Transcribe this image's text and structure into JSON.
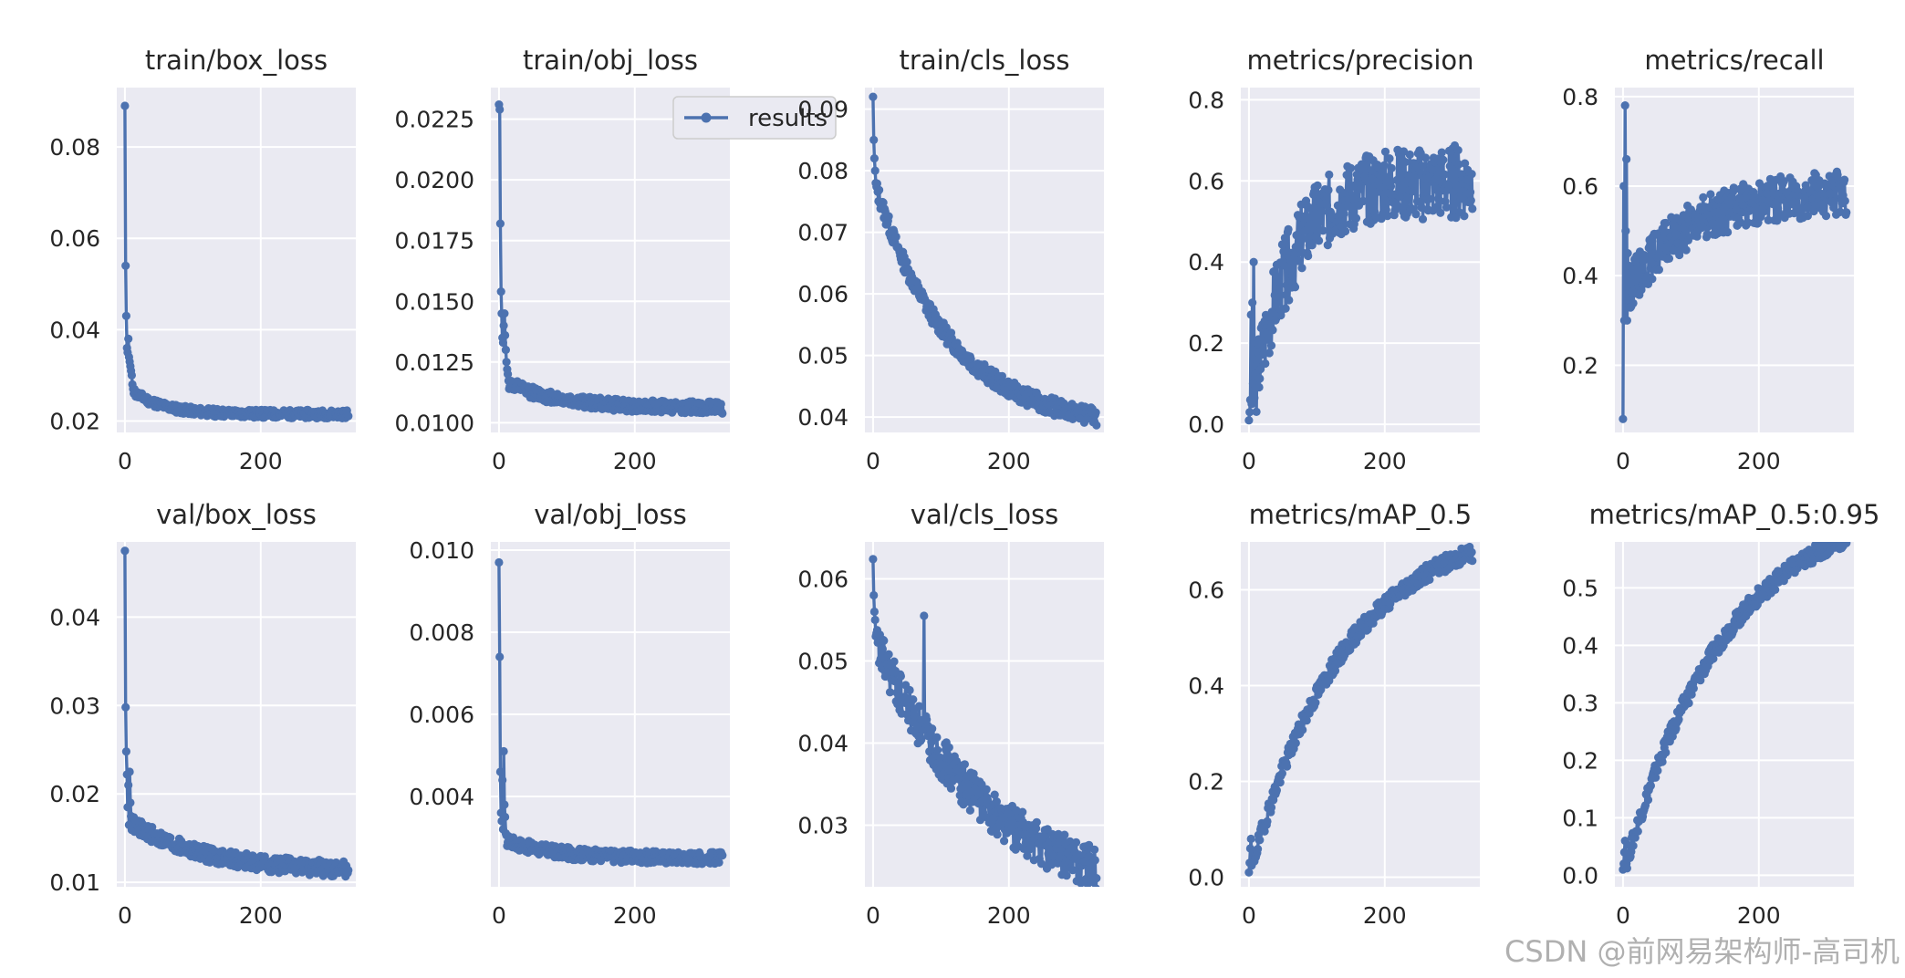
{
  "legend": {
    "label": "results"
  },
  "watermark": "CSDN @前网易架构师-高司机",
  "colors": {
    "line": "#4c72b0",
    "panel_bg": "#eaeaf2",
    "grid": "#ffffff",
    "text": "#262626"
  },
  "chart_data": [
    {
      "type": "line",
      "title": "train/box_loss",
      "xlim": [
        -12,
        340
      ],
      "ylim": [
        0.0175,
        0.093
      ],
      "xticks": [
        0,
        200
      ],
      "yticks": [
        0.02,
        0.04,
        0.06,
        0.08
      ],
      "ytick_labels": [
        "0.02",
        "0.04",
        "0.06",
        "0.08"
      ],
      "series": [
        {
          "name": "results",
          "curve": {
            "kind": "decay",
            "n": 330,
            "start": 0.089,
            "early": [
              0.089,
              0.054,
              0.043,
              0.036,
              0.035,
              0.038,
              0.034,
              0.033,
              0.032,
              0.031,
              0.03,
              0.028,
              0.027,
              0.026
            ],
            "a": 0.0065,
            "tau": 45,
            "floor": 0.0215,
            "noise": 0.0009,
            "spike": 0,
            "seed": 11
          }
        }
      ]
    },
    {
      "type": "line",
      "title": "train/obj_loss",
      "xlim": [
        -12,
        340
      ],
      "ylim": [
        0.0096,
        0.0238
      ],
      "xticks": [
        0,
        200
      ],
      "yticks": [
        0.01,
        0.0125,
        0.015,
        0.0175,
        0.02,
        0.0225
      ],
      "ytick_labels": [
        "0.0100",
        "0.0125",
        "0.0150",
        "0.0175",
        "0.0200",
        "0.0225"
      ],
      "series": [
        {
          "name": "results",
          "curve": {
            "kind": "decay",
            "n": 330,
            "start": 0.0231,
            "early": [
              0.0231,
              0.0229,
              0.0182,
              0.0154,
              0.0145,
              0.0135,
              0.0133,
              0.014,
              0.0145,
              0.0136,
              0.013,
              0.0125,
              0.0122,
              0.012
            ],
            "a": 0.0012,
            "tau": 80,
            "floor": 0.0106,
            "noise": 0.00025,
            "spike": 0,
            "seed": 12
          }
        }
      ]
    },
    {
      "type": "line",
      "title": "train/cls_loss",
      "xlim": [
        -12,
        340
      ],
      "ylim": [
        0.0375,
        0.0935
      ],
      "xticks": [
        0,
        200
      ],
      "yticks": [
        0.04,
        0.05,
        0.06,
        0.07,
        0.08,
        0.09
      ],
      "ytick_labels": [
        "0.04",
        "0.05",
        "0.06",
        "0.07",
        "0.08",
        "0.09"
      ],
      "series": [
        {
          "name": "results",
          "curve": {
            "kind": "decay",
            "n": 330,
            "start": 0.092,
            "early": [
              0.092,
              0.085,
              0.082,
              0.08,
              0.078
            ],
            "a": 0.041,
            "tau": 110,
            "floor": 0.038,
            "noise": 0.0014,
            "spike": 0,
            "seed": 13
          }
        }
      ]
    },
    {
      "type": "line",
      "title": "metrics/precision",
      "xlim": [
        -12,
        340
      ],
      "ylim": [
        -0.02,
        0.83
      ],
      "xticks": [
        0,
        200
      ],
      "yticks": [
        0.0,
        0.2,
        0.4,
        0.6,
        0.8
      ],
      "ytick_labels": [
        "0.0",
        "0.2",
        "0.4",
        "0.6",
        "0.8"
      ],
      "series": [
        {
          "name": "results",
          "curve": {
            "kind": "rise",
            "n": 330,
            "start": 0.01,
            "early": [
              0.01,
              0.03,
              0.06,
              0.27,
              0.05,
              0.3,
              0.1,
              0.4
            ],
            "a": 0.6,
            "tau": 55,
            "floor": 0.0,
            "noise": 0.09,
            "spike": 0.0,
            "seed": 14
          }
        }
      ]
    },
    {
      "type": "line",
      "title": "metrics/recall",
      "xlim": [
        -12,
        340
      ],
      "ylim": [
        0.05,
        0.82
      ],
      "xticks": [
        0,
        200
      ],
      "yticks": [
        0.2,
        0.4,
        0.6,
        0.8
      ],
      "ytick_labels": [
        "0.2",
        "0.4",
        "0.6",
        "0.8"
      ],
      "series": [
        {
          "name": "results",
          "curve": {
            "kind": "rise",
            "n": 330,
            "start": 0.08,
            "early": [
              0.08,
              0.6,
              0.3,
              0.78,
              0.5,
              0.66,
              0.3,
              0.45
            ],
            "a": 0.24,
            "tau": 90,
            "floor": 0.35,
            "noise": 0.05,
            "spike": 0.0,
            "seed": 15
          }
        }
      ]
    },
    {
      "type": "line",
      "title": "val/box_loss",
      "xlim": [
        -12,
        340
      ],
      "ylim": [
        0.0095,
        0.0485
      ],
      "xticks": [
        0,
        200
      ],
      "yticks": [
        0.01,
        0.02,
        0.03,
        0.04
      ],
      "ytick_labels": [
        "0.01",
        "0.02",
        "0.03",
        "0.04"
      ],
      "series": [
        {
          "name": "results",
          "curve": {
            "kind": "decay",
            "n": 330,
            "start": 0.0475,
            "early": [
              0.0475,
              0.0298,
              0.0248,
              0.0222,
              0.0185,
              0.021,
              0.0165,
              0.0225,
              0.019,
              0.0175
            ],
            "a": 0.006,
            "tau": 110,
            "floor": 0.0112,
            "noise": 0.0009,
            "spike": 0,
            "seed": 16
          }
        }
      ]
    },
    {
      "type": "line",
      "title": "val/obj_loss",
      "xlim": [
        -12,
        340
      ],
      "ylim": [
        0.0018,
        0.0102
      ],
      "xticks": [
        0,
        200
      ],
      "yticks": [
        0.004,
        0.006,
        0.008,
        0.01
      ],
      "ytick_labels": [
        "0.004",
        "0.006",
        "0.008",
        "0.010"
      ],
      "series": [
        {
          "name": "results",
          "curve": {
            "kind": "decay",
            "n": 330,
            "start": 0.0097,
            "early": [
              0.0097,
              0.0074,
              0.0046,
              0.0036,
              0.0034,
              0.0044,
              0.0032,
              0.0051,
              0.0038,
              0.0035,
              0.0031
            ],
            "a": 0.0005,
            "tau": 70,
            "floor": 0.0025,
            "noise": 0.00015,
            "spike": 0,
            "seed": 17
          }
        }
      ]
    },
    {
      "type": "line",
      "title": "val/cls_loss",
      "xlim": [
        -12,
        340
      ],
      "ylim": [
        0.0225,
        0.0645
      ],
      "xticks": [
        0,
        200
      ],
      "yticks": [
        0.03,
        0.04,
        0.05,
        0.06
      ],
      "ytick_labels": [
        "0.03",
        "0.04",
        "0.05",
        "0.06"
      ],
      "series": [
        {
          "name": "results",
          "curve": {
            "kind": "decay",
            "n": 330,
            "start": 0.0624,
            "early": [
              0.0624,
              0.058,
              0.056,
              0.055,
              0.053
            ],
            "a": 0.033,
            "tau": 170,
            "floor": 0.02,
            "noise": 0.0026,
            "spike": 0.0555,
            "seed": 18
          }
        }
      ]
    },
    {
      "type": "line",
      "title": "metrics/mAP_0.5",
      "xlim": [
        -12,
        340
      ],
      "ylim": [
        -0.02,
        0.7
      ],
      "xticks": [
        0,
        200
      ],
      "yticks": [
        0.0,
        0.2,
        0.4,
        0.6
      ],
      "ytick_labels": [
        "0.0",
        "0.2",
        "0.4",
        "0.6"
      ],
      "series": [
        {
          "name": "results",
          "curve": {
            "kind": "rise",
            "n": 330,
            "start": 0.01,
            "early": [
              0.01,
              0.03,
              0.06,
              0.08
            ],
            "a": 0.75,
            "tau": 140,
            "floor": 0.0,
            "noise": 0.018,
            "spike": 0.0,
            "seed": 19
          }
        }
      ]
    },
    {
      "type": "line",
      "title": "metrics/mAP_0.5:0.95",
      "xlim": [
        -12,
        340
      ],
      "ylim": [
        -0.02,
        0.58
      ],
      "xticks": [
        0,
        200
      ],
      "yticks": [
        0.0,
        0.1,
        0.2,
        0.3,
        0.4,
        0.5
      ],
      "ytick_labels": [
        "0.0",
        "0.1",
        "0.2",
        "0.3",
        "0.4",
        "0.5"
      ],
      "series": [
        {
          "name": "results",
          "curve": {
            "kind": "rise",
            "n": 330,
            "start": 0.01,
            "early": [
              0.01,
              0.02,
              0.04,
              0.06
            ],
            "a": 0.66,
            "tau": 150,
            "floor": 0.0,
            "noise": 0.015,
            "spike": 0.0,
            "seed": 20
          }
        }
      ]
    }
  ]
}
